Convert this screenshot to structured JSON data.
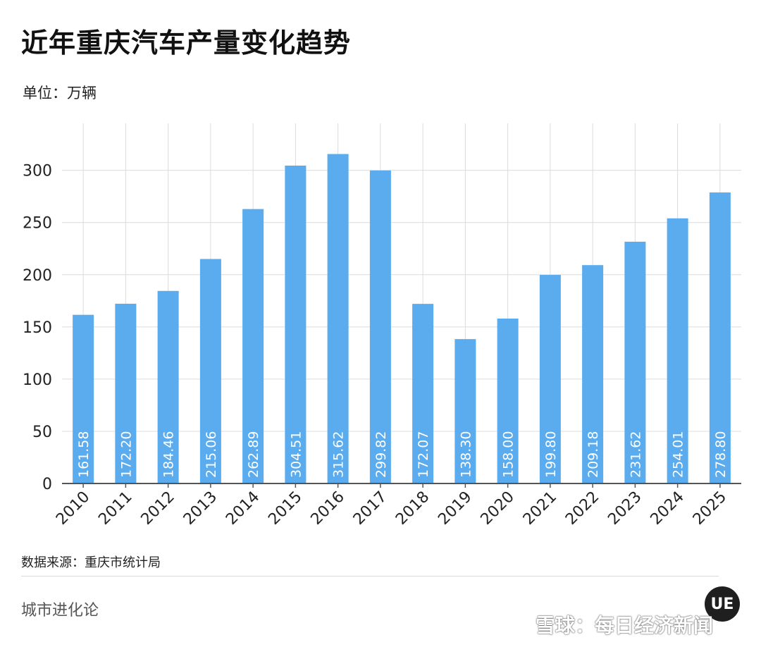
{
  "title": "近年重庆汽车产量变化趋势",
  "unit": "单位：万辆",
  "source": "数据来源：重庆市统计局",
  "brand": "城市进化论",
  "watermark": "雪球：每日经济新闻",
  "colors": {
    "bar": "#5aacee",
    "grid": "#dcdcdc",
    "axis": "#555555",
    "label": "#ffffff"
  },
  "chart_data": {
    "type": "bar",
    "categories": [
      "2010",
      "2011",
      "2012",
      "2013",
      "2014",
      "2015",
      "2016",
      "2017",
      "2018",
      "2019",
      "2020",
      "2021",
      "2022",
      "2023",
      "2024",
      "2025"
    ],
    "values": [
      161.58,
      172.2,
      184.46,
      215.06,
      262.89,
      304.51,
      315.62,
      299.82,
      172.07,
      138.3,
      158.0,
      199.8,
      209.18,
      231.62,
      254.01,
      278.8
    ],
    "data_labels": [
      "161.58",
      "172.20",
      "184.46",
      "215.06",
      "262.89",
      "304.51",
      "315.62",
      "299.82",
      "172.07",
      "138.30",
      "158.00",
      "199.80",
      "209.18",
      "231.62",
      "254.01",
      "278.80"
    ],
    "yticks": [
      0,
      50,
      100,
      150,
      200,
      250,
      300
    ],
    "ylim": [
      0,
      345
    ],
    "grid": true
  }
}
